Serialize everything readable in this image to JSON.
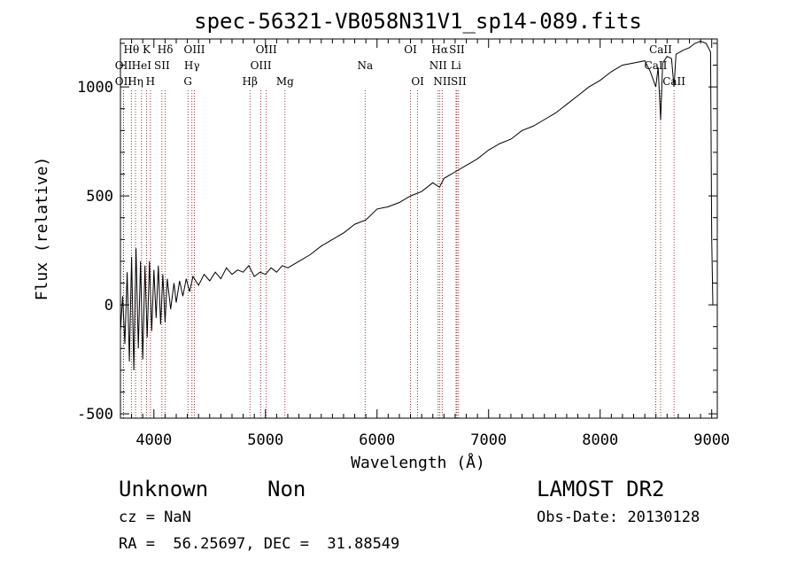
{
  "chart_data": {
    "type": "line",
    "title": "spec-56321-VB058N31V1_sp14-089.fits",
    "xlabel": "Wavelength (Å)",
    "ylabel": "Flux (relative)",
    "xlim": [
      3700,
      9050
    ],
    "ylim": [
      -520,
      1220
    ],
    "xticks": [
      4000,
      5000,
      6000,
      7000,
      8000,
      9000
    ],
    "yticks": [
      -500,
      0,
      500,
      1000
    ],
    "series": [
      {
        "points": [
          [
            3700,
            -120
          ],
          [
            3720,
            40
          ],
          [
            3740,
            -180
          ],
          [
            3760,
            150
          ],
          [
            3780,
            -260
          ],
          [
            3800,
            220
          ],
          [
            3820,
            -300
          ],
          [
            3840,
            260
          ],
          [
            3860,
            -200
          ],
          [
            3880,
            200
          ],
          [
            3900,
            -250
          ],
          [
            3920,
            180
          ],
          [
            3940,
            -150
          ],
          [
            3960,
            200
          ],
          [
            3980,
            -120
          ],
          [
            4000,
            160
          ],
          [
            4020,
            -60
          ],
          [
            4040,
            180
          ],
          [
            4060,
            -90
          ],
          [
            4080,
            140
          ],
          [
            4100,
            -80
          ],
          [
            4120,
            120
          ],
          [
            4150,
            -20
          ],
          [
            4180,
            100
          ],
          [
            4200,
            10
          ],
          [
            4230,
            110
          ],
          [
            4260,
            40
          ],
          [
            4290,
            120
          ],
          [
            4320,
            60
          ],
          [
            4350,
            130
          ],
          [
            4400,
            90
          ],
          [
            4450,
            140
          ],
          [
            4500,
            110
          ],
          [
            4550,
            150
          ],
          [
            4600,
            120
          ],
          [
            4650,
            170
          ],
          [
            4700,
            140
          ],
          [
            4750,
            160
          ],
          [
            4800,
            150
          ],
          [
            4850,
            180
          ],
          [
            4900,
            130
          ],
          [
            4950,
            150
          ],
          [
            5000,
            140
          ],
          [
            5050,
            170
          ],
          [
            5100,
            150
          ],
          [
            5150,
            180
          ],
          [
            5200,
            170
          ],
          [
            5300,
            200
          ],
          [
            5400,
            230
          ],
          [
            5500,
            270
          ],
          [
            5600,
            300
          ],
          [
            5700,
            330
          ],
          [
            5800,
            370
          ],
          [
            5900,
            390
          ],
          [
            6000,
            440
          ],
          [
            6100,
            450
          ],
          [
            6200,
            470
          ],
          [
            6300,
            500
          ],
          [
            6400,
            520
          ],
          [
            6500,
            560
          ],
          [
            6560,
            540
          ],
          [
            6600,
            580
          ],
          [
            6700,
            610
          ],
          [
            6800,
            640
          ],
          [
            6900,
            670
          ],
          [
            7000,
            710
          ],
          [
            7100,
            740
          ],
          [
            7200,
            760
          ],
          [
            7300,
            800
          ],
          [
            7400,
            820
          ],
          [
            7500,
            850
          ],
          [
            7600,
            880
          ],
          [
            7700,
            920
          ],
          [
            7800,
            960
          ],
          [
            7900,
            1000
          ],
          [
            8000,
            1030
          ],
          [
            8100,
            1070
          ],
          [
            8200,
            1100
          ],
          [
            8300,
            1110
          ],
          [
            8400,
            1120
          ],
          [
            8450,
            1070
          ],
          [
            8498,
            1000
          ],
          [
            8520,
            1090
          ],
          [
            8542,
            850
          ],
          [
            8560,
            1110
          ],
          [
            8600,
            1140
          ],
          [
            8640,
            1130
          ],
          [
            8662,
            1000
          ],
          [
            8680,
            1150
          ],
          [
            8750,
            1170
          ],
          [
            8800,
            1180
          ],
          [
            8850,
            1200
          ],
          [
            8900,
            1210
          ],
          [
            8950,
            1200
          ],
          [
            8990,
            1160
          ],
          [
            9000,
            300
          ],
          [
            9010,
            0
          ]
        ]
      }
    ],
    "lines": [
      {
        "label": "Hθ",
        "wave": 3798,
        "row": 0
      },
      {
        "label": "OII",
        "wave": 3727,
        "row": 1
      },
      {
        "label": "OII",
        "wave": 3727,
        "row": 2
      },
      {
        "label": "K",
        "wave": 3934,
        "row": 0
      },
      {
        "label": "HeI",
        "wave": 3889,
        "row": 1
      },
      {
        "label": "Hη",
        "wave": 3835,
        "row": 2
      },
      {
        "label": "Hδ",
        "wave": 4102,
        "row": 0
      },
      {
        "label": "SII",
        "wave": 4072,
        "row": 1
      },
      {
        "label": "H",
        "wave": 3969,
        "row": 2
      },
      {
        "label": "OIII",
        "wave": 4363,
        "row": 0
      },
      {
        "label": "Hγ",
        "wave": 4341,
        "row": 1
      },
      {
        "label": "G",
        "wave": 4305,
        "row": 2
      },
      {
        "label": "OIII",
        "wave": 5007,
        "row": 0
      },
      {
        "label": "OIII",
        "wave": 4959,
        "row": 1
      },
      {
        "label": "Hβ",
        "wave": 4861,
        "row": 2
      },
      {
        "label": "Mg",
        "wave": 5175,
        "row": 2
      },
      {
        "label": "Na",
        "wave": 5893,
        "row": 1
      },
      {
        "label": "OI",
        "wave": 6300,
        "row": 0
      },
      {
        "label": "OI",
        "wave": 6364,
        "row": 2
      },
      {
        "label": "Hα",
        "wave": 6563,
        "row": 0
      },
      {
        "label": "SII",
        "wave": 6716,
        "row": 0
      },
      {
        "label": "NII",
        "wave": 6548,
        "row": 1
      },
      {
        "label": "Li",
        "wave": 6708,
        "row": 1
      },
      {
        "label": "NII",
        "wave": 6584,
        "row": 2
      },
      {
        "label": "SII",
        "wave": 6731,
        "row": 2
      },
      {
        "label": "CaII",
        "wave": 8542,
        "row": 0
      },
      {
        "label": "CaII",
        "wave": 8498,
        "row": 1
      },
      {
        "label": "CaII",
        "wave": 8662,
        "row": 2
      }
    ]
  },
  "info": {
    "class_label": "Unknown",
    "subclass_label": "Non",
    "survey_label": "LAMOST DR2",
    "cz_text": "cz = NaN",
    "obs_date_text": "Obs-Date: 20130128",
    "coords_text": "RA =  56.25697, DEC =  31.88549"
  }
}
